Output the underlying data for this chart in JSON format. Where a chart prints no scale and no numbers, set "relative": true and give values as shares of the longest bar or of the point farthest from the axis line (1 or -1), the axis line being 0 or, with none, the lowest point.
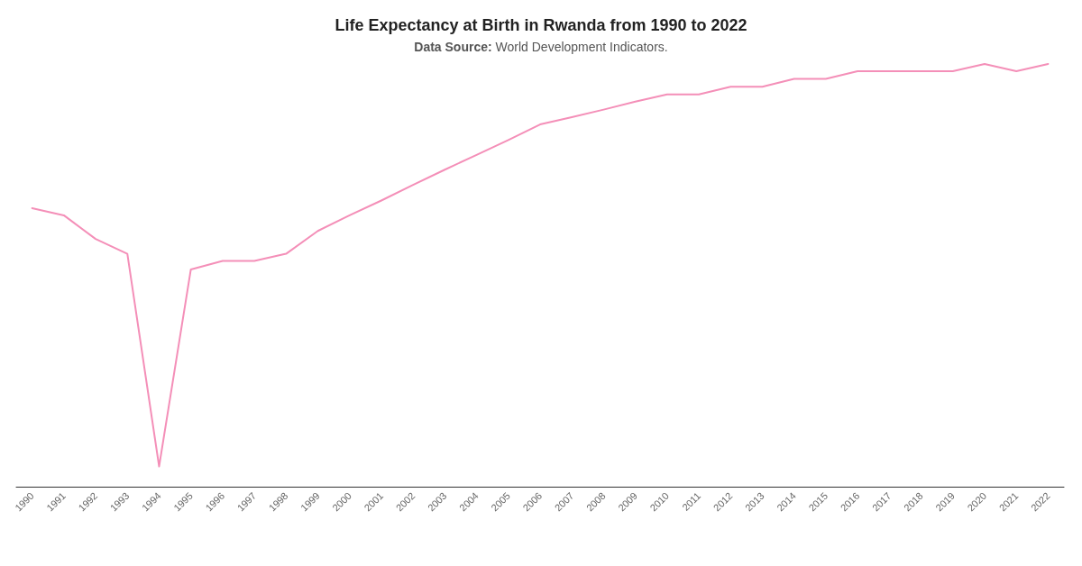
{
  "chart_data": {
    "type": "line",
    "title": "Life Expectancy at Birth in Rwanda from 1990 to 2022",
    "subtitle": "Data Source: World Development Indicators.",
    "relative": true,
    "grid": false,
    "marker": "none",
    "line_style": "solid",
    "categories": [
      "1990",
      "1991",
      "1992",
      "1993",
      "1994",
      "1995",
      "1996",
      "1997",
      "1998",
      "1999",
      "2000",
      "2001",
      "2002",
      "2003",
      "2004",
      "2005",
      "2006",
      "2007",
      "2008",
      "2009",
      "2010",
      "2011",
      "2012",
      "2013",
      "2014",
      "2015",
      "2016",
      "2017",
      "2018",
      "2019",
      "2020",
      "2021",
      "2022"
    ],
    "series": [
      {
        "color": "#f48fb8",
        "values": [
          0.659,
          0.642,
          0.586,
          0.551,
          0.048,
          0.514,
          0.534,
          0.534,
          0.551,
          0.605,
          0.642,
          0.677,
          0.714,
          0.75,
          0.785,
          0.82,
          0.857,
          0.874,
          0.892,
          0.911,
          0.928,
          0.928,
          0.946,
          0.946,
          0.965,
          0.965,
          0.983,
          0.983,
          0.983,
          0.983,
          1,
          0.983,
          1
        ]
      }
    ]
  }
}
